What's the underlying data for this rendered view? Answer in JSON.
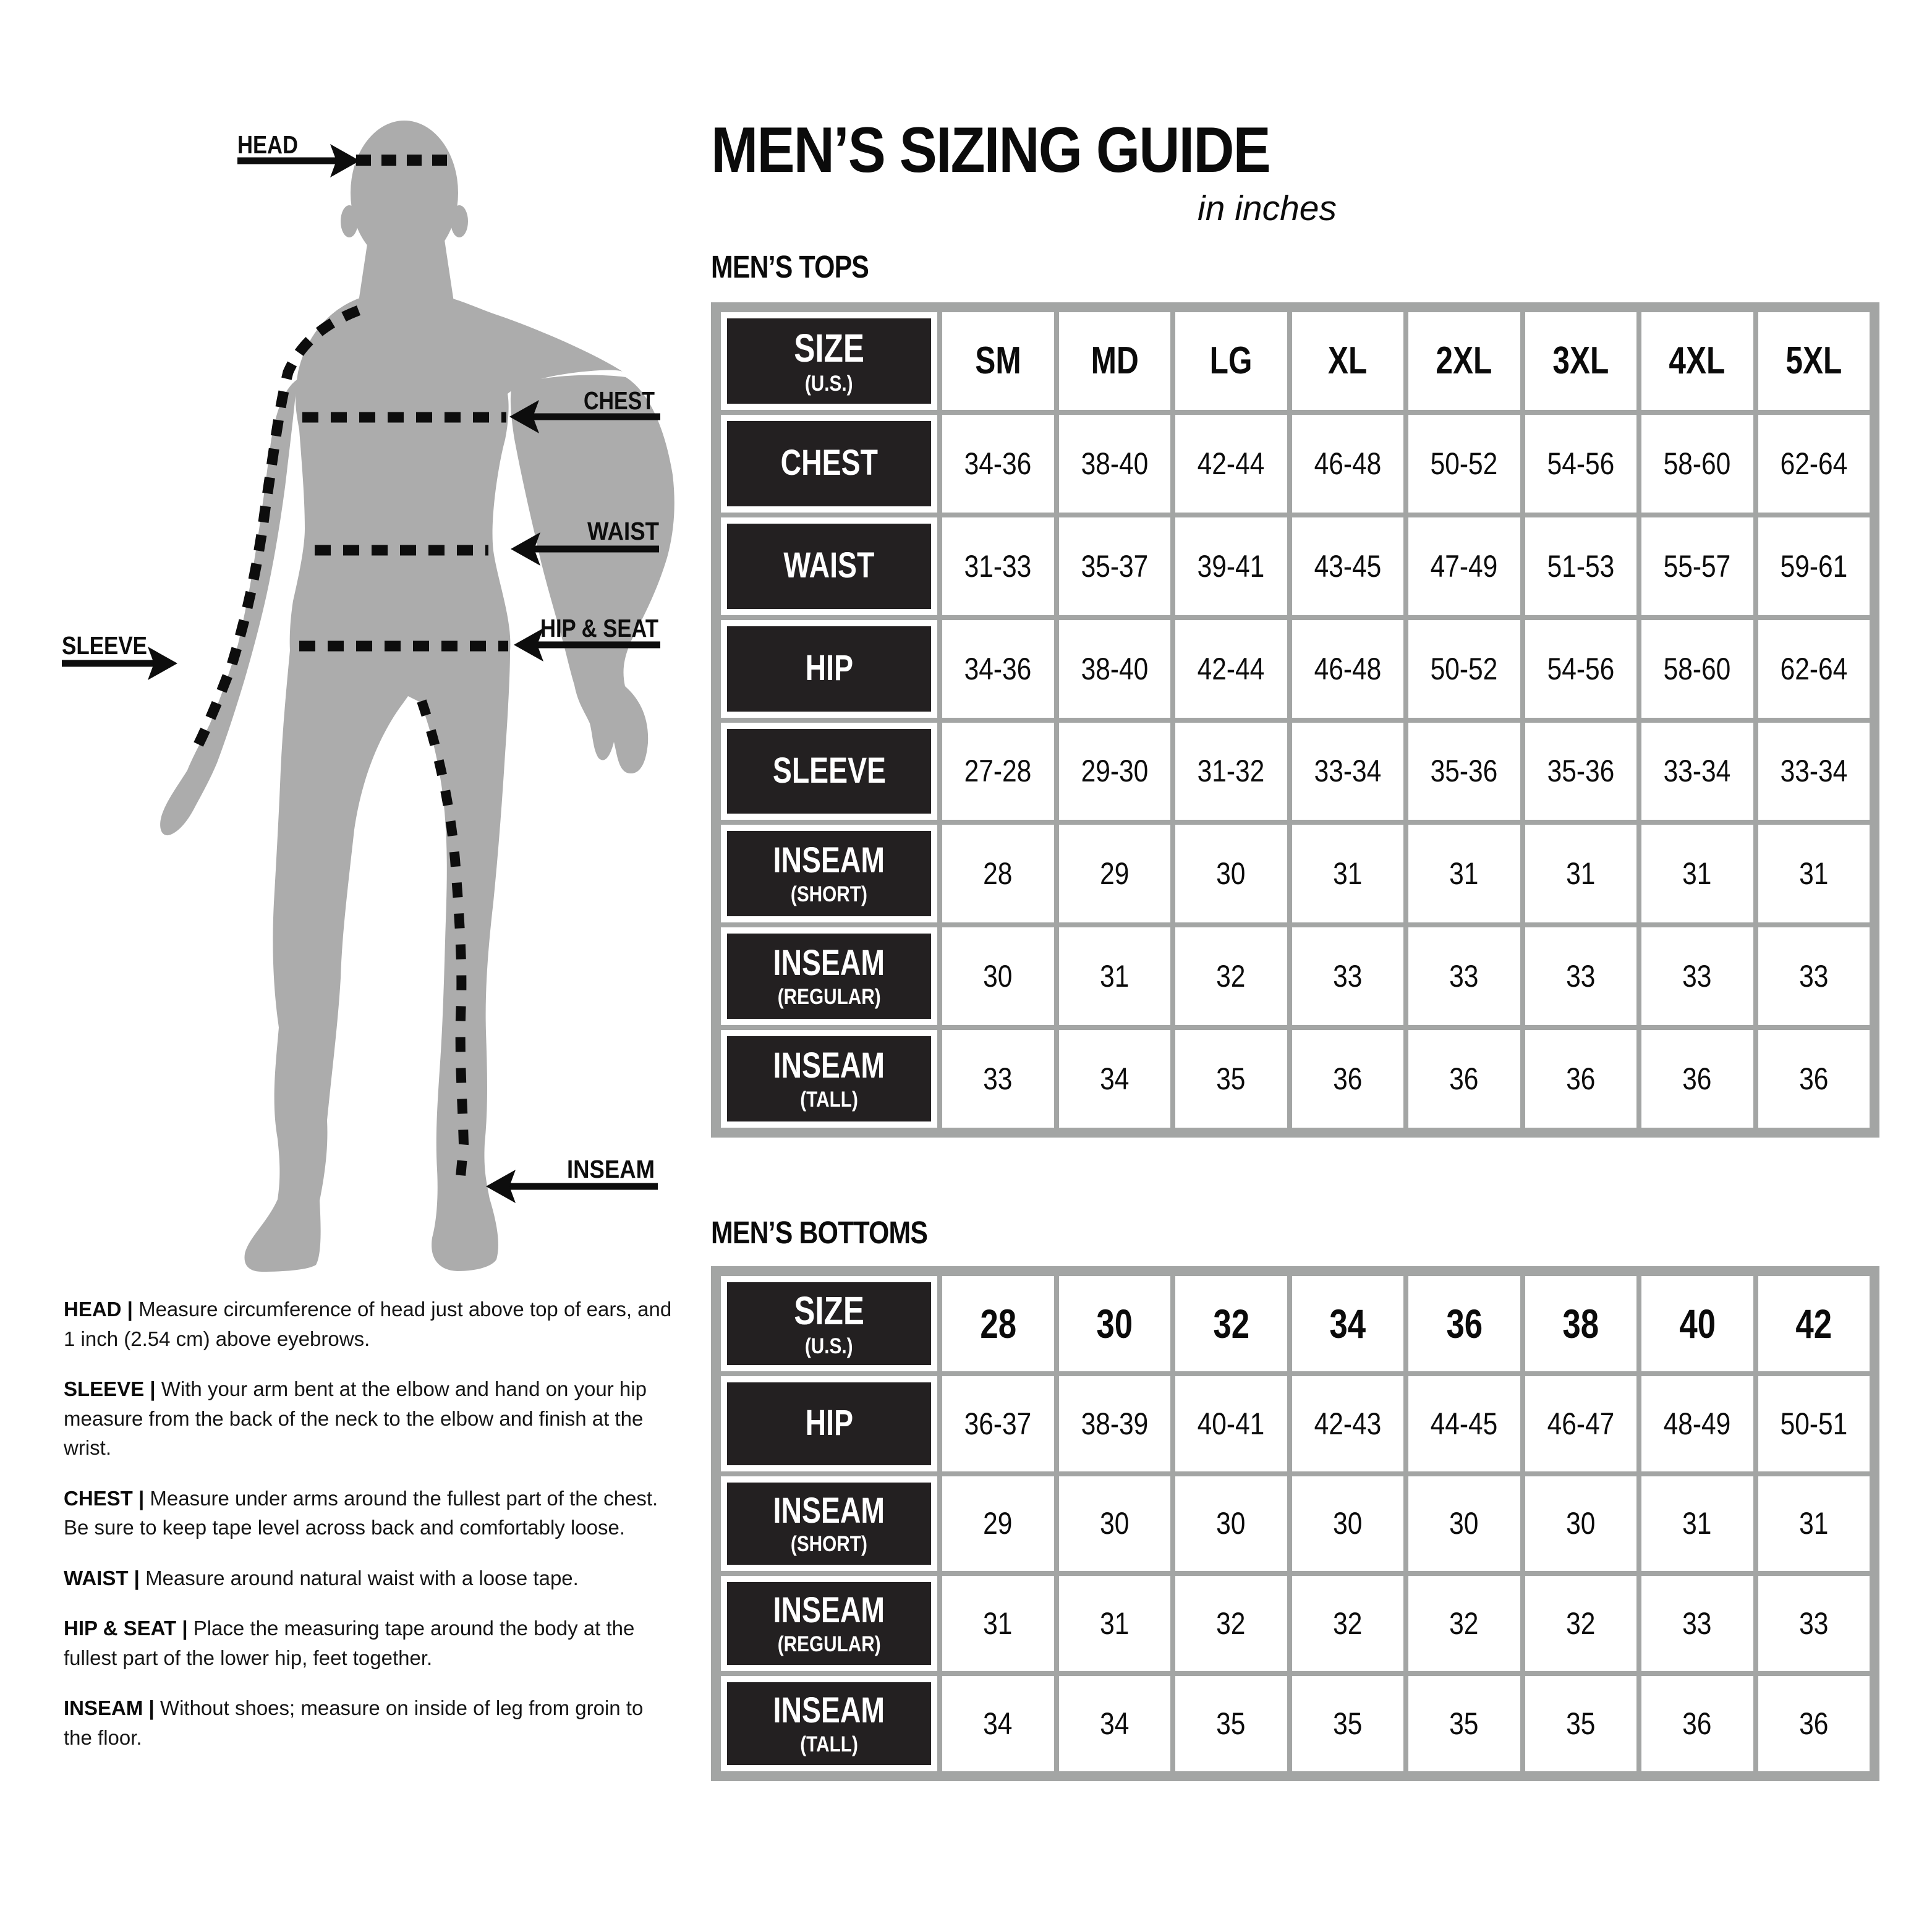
{
  "title": "MEN’S SIZING GUIDE",
  "subtitle": "in inches",
  "colors": {
    "header_block": "#232021",
    "table_grid_gray": "#a3a5a4",
    "silhouette_gray": "#acacac",
    "text_black": "#0d0d0d"
  },
  "diagram": {
    "labels": {
      "head": "HEAD",
      "chest": "CHEST",
      "waist": "WAIST",
      "hip_seat": "HIP & SEAT",
      "sleeve": "SLEEVE",
      "inseam": "INSEAM"
    }
  },
  "tops": {
    "section_label": "MEN’S TOPS",
    "corner_title": "SIZE",
    "corner_sub": "(U.S.)",
    "columns": [
      "SM",
      "MD",
      "LG",
      "XL",
      "2XL",
      "3XL",
      "4XL",
      "5XL"
    ],
    "rows": [
      {
        "label": "CHEST",
        "sub": "",
        "values": [
          "34-36",
          "38-40",
          "42-44",
          "46-48",
          "50-52",
          "54-56",
          "58-60",
          "62-64"
        ]
      },
      {
        "label": "WAIST",
        "sub": "",
        "values": [
          "31-33",
          "35-37",
          "39-41",
          "43-45",
          "47-49",
          "51-53",
          "55-57",
          "59-61"
        ]
      },
      {
        "label": "HIP",
        "sub": "",
        "values": [
          "34-36",
          "38-40",
          "42-44",
          "46-48",
          "50-52",
          "54-56",
          "58-60",
          "62-64"
        ]
      },
      {
        "label": "SLEEVE",
        "sub": "",
        "values": [
          "27-28",
          "29-30",
          "31-32",
          "33-34",
          "35-36",
          "35-36",
          "33-34",
          "33-34"
        ]
      },
      {
        "label": "INSEAM",
        "sub": "(SHORT)",
        "values": [
          "28",
          "29",
          "30",
          "31",
          "31",
          "31",
          "31",
          "31"
        ]
      },
      {
        "label": "INSEAM",
        "sub": "(REGULAR)",
        "values": [
          "30",
          "31",
          "32",
          "33",
          "33",
          "33",
          "33",
          "33"
        ]
      },
      {
        "label": "INSEAM",
        "sub": "(TALL)",
        "values": [
          "33",
          "34",
          "35",
          "36",
          "36",
          "36",
          "36",
          "36"
        ]
      }
    ]
  },
  "bottoms": {
    "section_label": "MEN’S BOTTOMS",
    "corner_title": "SIZE",
    "corner_sub": "(U.S.)",
    "columns": [
      "28",
      "30",
      "32",
      "34",
      "36",
      "38",
      "40",
      "42"
    ],
    "rows": [
      {
        "label": "HIP",
        "sub": "",
        "values": [
          "36-37",
          "38-39",
          "40-41",
          "42-43",
          "44-45",
          "46-47",
          "48-49",
          "50-51"
        ]
      },
      {
        "label": "INSEAM",
        "sub": "(SHORT)",
        "values": [
          "29",
          "30",
          "30",
          "30",
          "30",
          "30",
          "31",
          "31"
        ]
      },
      {
        "label": "INSEAM",
        "sub": "(REGULAR)",
        "values": [
          "31",
          "31",
          "32",
          "32",
          "32",
          "32",
          "33",
          "33"
        ]
      },
      {
        "label": "INSEAM",
        "sub": "(TALL)",
        "values": [
          "34",
          "34",
          "35",
          "35",
          "35",
          "35",
          "36",
          "36"
        ]
      }
    ]
  },
  "instructions": {
    "separator": "|",
    "items": [
      {
        "term": "HEAD",
        "text": "Measure circumference of head just above top of ears, and 1 inch (2.54 cm) above eyebrows."
      },
      {
        "term": "SLEEVE",
        "text": "With your arm bent at the elbow and hand on your hip measure from the back of the neck to the elbow and finish at the wrist."
      },
      {
        "term": "CHEST",
        "text": "Measure under arms around the fullest part of the chest. Be sure to keep tape level across back and comfortably loose."
      },
      {
        "term": "WAIST",
        "text": "Measure around natural waist with a loose tape."
      },
      {
        "term": "HIP & SEAT",
        "text": "Place the measuring tape around the body at the fullest part of the lower hip, feet together."
      },
      {
        "term": "INSEAM",
        "text": "Without shoes; measure on inside of leg from groin to the floor."
      }
    ]
  }
}
